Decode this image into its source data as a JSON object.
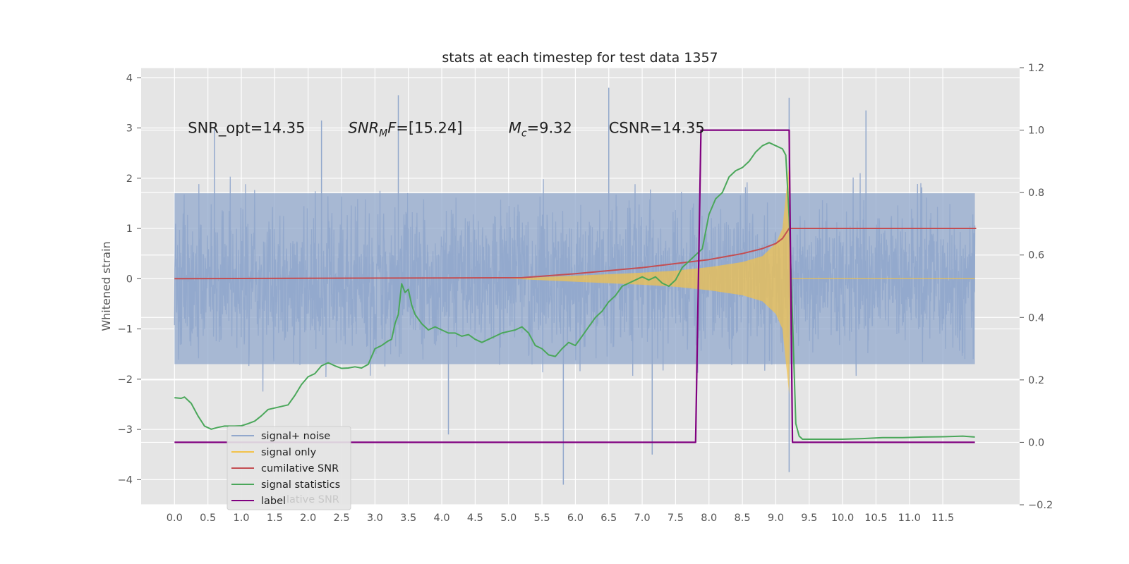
{
  "chart_data": {
    "type": "line",
    "title": "stats at each timestep for test data 1357",
    "ylabel": "Whitened strain",
    "ylabel_right": "",
    "xlim": [
      -0.5,
      12.65
    ],
    "ylim": [
      -4.5,
      4.2
    ],
    "ylim_right": [
      -0.2,
      1.2
    ],
    "grid": true,
    "background": "#e5e5e5",
    "x_ticks": [
      0.0,
      0.5,
      1.0,
      1.5,
      2.0,
      2.5,
      3.0,
      3.5,
      4.0,
      4.5,
      5.0,
      5.5,
      6.0,
      6.5,
      7.0,
      7.5,
      8.0,
      8.5,
      9.0,
      9.5,
      10.0,
      10.5,
      11.0,
      11.5
    ],
    "x_tick_labels": [
      "0.0",
      "0.5",
      "1.0",
      "1.5",
      "2.0",
      "2.5",
      "3.0",
      "3.5",
      "4.0",
      "4.5",
      "5.0",
      "5.5",
      "6.0",
      "6.5",
      "7.0",
      "7.5",
      "8.0",
      "8.5",
      "9.0",
      "9.5",
      "10.0",
      "10.5",
      "11.0",
      "11.5"
    ],
    "y_ticks": [
      4,
      3,
      2,
      1,
      0,
      -1,
      -2,
      -3,
      -4
    ],
    "y_tick_labels": [
      "4",
      "3",
      "2",
      "1",
      "0",
      "−1",
      "−2",
      "−3",
      "−4"
    ],
    "y_right_ticks": [
      1.2,
      1.0,
      0.8,
      0.6,
      0.4,
      0.2,
      0.0,
      -0.2
    ],
    "y_right_tick_labels": [
      "1.2",
      "1.0",
      "0.8",
      "0.6",
      "0.4",
      "0.2",
      "0.0",
      "−0.2"
    ],
    "annotations": [
      {
        "x": 0.2,
        "y": 2.9,
        "text": "SNR_opt=14.35"
      },
      {
        "x": 2.6,
        "y": 2.9,
        "text": "SNR_MF=[15.24]"
      },
      {
        "x": 5.0,
        "y": 2.9,
        "text": "M_c=9.32"
      },
      {
        "x": 6.5,
        "y": 2.9,
        "text": "CSNR=14.35"
      }
    ],
    "legend": {
      "placement": "lower-left",
      "entries": [
        {
          "label": "signal+ noise",
          "color": "#92a8cc"
        },
        {
          "label": "signal only",
          "color": "#f2c24b"
        },
        {
          "label": "cumilative SNR",
          "color": "#c44e52"
        },
        {
          "label": "signal statistics",
          "color": "#4aa75a"
        },
        {
          "label": "label",
          "color": "#800080"
        }
      ],
      "ghost_text": "lative SNR"
    },
    "series": [
      {
        "name": "signal+ noise",
        "axis": "left",
        "color": "#92a8cc",
        "style": "dense noise, t from 0.0 to 11.98",
        "band": [
          -1.7,
          1.7
        ],
        "spikes": [
          {
            "x": 3.35,
            "y": 3.65
          },
          {
            "x": 6.5,
            "y": 3.8
          },
          {
            "x": 10.35,
            "y": 3.35
          },
          {
            "x": 9.2,
            "y": 3.6
          },
          {
            "x": 5.82,
            "y": -4.1
          },
          {
            "x": 9.2,
            "y": -3.85
          },
          {
            "x": 7.15,
            "y": -3.5
          },
          {
            "x": 4.1,
            "y": -3.1
          },
          {
            "x": 2.2,
            "y": 3.15
          },
          {
            "x": 0.6,
            "y": 3.0
          }
        ]
      },
      {
        "name": "signal only",
        "axis": "left",
        "color": "#f2c24b",
        "envelope": [
          {
            "x": 5.0,
            "y": 0.0
          },
          {
            "x": 6.0,
            "y": 0.06
          },
          {
            "x": 7.0,
            "y": 0.12
          },
          {
            "x": 7.5,
            "y": 0.16
          },
          {
            "x": 8.0,
            "y": 0.23
          },
          {
            "x": 8.5,
            "y": 0.33
          },
          {
            "x": 8.8,
            "y": 0.45
          },
          {
            "x": 9.0,
            "y": 0.7
          },
          {
            "x": 9.1,
            "y": 1.0
          },
          {
            "x": 9.2,
            "y": 2.3
          },
          {
            "x": 9.22,
            "y": 0.0
          }
        ]
      },
      {
        "name": "cumilative SNR",
        "axis": "left",
        "color": "#c44e52",
        "x": [
          0.0,
          5.2,
          6.0,
          7.0,
          7.5,
          8.0,
          8.5,
          8.8,
          9.0,
          9.1,
          9.2,
          12.0
        ],
        "y": [
          0.0,
          0.02,
          0.1,
          0.22,
          0.3,
          0.38,
          0.5,
          0.6,
          0.7,
          0.8,
          1.0,
          1.0
        ]
      },
      {
        "name": "signal statistics",
        "axis": "right",
        "color": "#4aa75a",
        "x": [
          0.0,
          0.1,
          0.15,
          0.25,
          0.35,
          0.45,
          0.55,
          0.65,
          0.75,
          0.9,
          1.0,
          1.1,
          1.2,
          1.3,
          1.4,
          1.5,
          1.7,
          1.8,
          1.9,
          2.0,
          2.1,
          2.2,
          2.3,
          2.4,
          2.5,
          2.6,
          2.7,
          2.8,
          2.9,
          3.0,
          3.1,
          3.2,
          3.25,
          3.3,
          3.35,
          3.4,
          3.45,
          3.5,
          3.55,
          3.6,
          3.7,
          3.8,
          3.9,
          4.0,
          4.1,
          4.2,
          4.3,
          4.4,
          4.5,
          4.6,
          4.7,
          4.8,
          4.9,
          5.0,
          5.1,
          5.2,
          5.3,
          5.4,
          5.5,
          5.6,
          5.7,
          5.8,
          5.9,
          6.0,
          6.1,
          6.2,
          6.3,
          6.4,
          6.5,
          6.6,
          6.7,
          6.8,
          6.9,
          7.0,
          7.1,
          7.2,
          7.3,
          7.4,
          7.5,
          7.6,
          7.7,
          7.8,
          7.9,
          8.0,
          8.1,
          8.2,
          8.3,
          8.4,
          8.5,
          8.6,
          8.7,
          8.8,
          8.9,
          9.0,
          9.1,
          9.15,
          9.2,
          9.25,
          9.3,
          9.35,
          9.4,
          9.5,
          9.7,
          10.0,
          10.3,
          10.6,
          10.9,
          11.2,
          11.5,
          11.8,
          11.98
        ],
        "y": [
          0.143,
          0.141,
          0.145,
          0.125,
          0.085,
          0.052,
          0.042,
          0.048,
          0.052,
          0.052,
          0.053,
          0.06,
          0.068,
          0.085,
          0.105,
          0.11,
          0.12,
          0.15,
          0.185,
          0.21,
          0.22,
          0.245,
          0.255,
          0.245,
          0.237,
          0.238,
          0.242,
          0.238,
          0.25,
          0.3,
          0.31,
          0.325,
          0.33,
          0.38,
          0.41,
          0.508,
          0.48,
          0.49,
          0.44,
          0.41,
          0.38,
          0.36,
          0.37,
          0.36,
          0.35,
          0.35,
          0.34,
          0.345,
          0.33,
          0.32,
          0.33,
          0.34,
          0.35,
          0.355,
          0.36,
          0.37,
          0.35,
          0.31,
          0.3,
          0.28,
          0.275,
          0.3,
          0.32,
          0.31,
          0.34,
          0.37,
          0.4,
          0.42,
          0.45,
          0.47,
          0.5,
          0.51,
          0.52,
          0.53,
          0.52,
          0.53,
          0.51,
          0.5,
          0.52,
          0.56,
          0.58,
          0.6,
          0.62,
          0.73,
          0.78,
          0.8,
          0.85,
          0.87,
          0.88,
          0.9,
          0.93,
          0.95,
          0.96,
          0.95,
          0.94,
          0.92,
          0.72,
          0.4,
          0.06,
          0.02,
          0.01,
          0.01,
          0.01,
          0.01,
          0.012,
          0.015,
          0.015,
          0.017,
          0.018,
          0.02,
          0.017
        ]
      },
      {
        "name": "label",
        "axis": "right",
        "color": "#800080",
        "x": [
          0.0,
          7.8,
          7.88,
          9.2,
          9.25,
          11.98
        ],
        "y": [
          0.0,
          0.0,
          1.0,
          1.0,
          0.0,
          0.0
        ]
      }
    ]
  }
}
